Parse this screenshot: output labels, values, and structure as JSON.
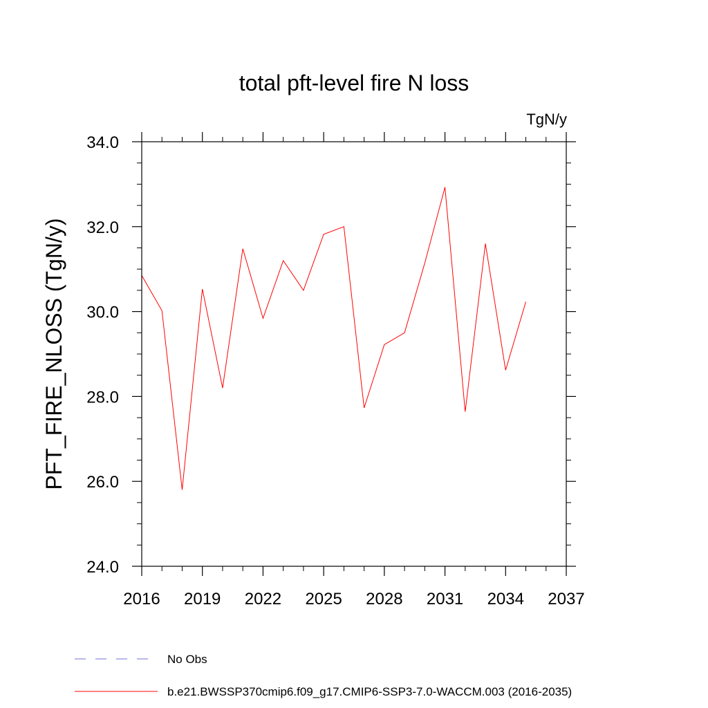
{
  "chart_data": {
    "type": "line",
    "title": "total pft-level fire N loss",
    "units_label": "TgN/y",
    "ylabel": "PFT_FIRE_NLOSS  (TgN/y)",
    "xlabel": "",
    "xlim": [
      2016,
      2037
    ],
    "ylim": [
      24.0,
      34.0
    ],
    "x_ticks": [
      2016,
      2019,
      2022,
      2025,
      2028,
      2031,
      2034,
      2037
    ],
    "x_tick_labels": [
      "2016",
      "2019",
      "2022",
      "2025",
      "2028",
      "2031",
      "2034",
      "2037"
    ],
    "y_ticks": [
      24,
      26,
      28,
      30,
      32,
      34
    ],
    "y_tick_labels": [
      "24.0",
      "26.0",
      "28.0",
      "30.0",
      "32.0",
      "34.0"
    ],
    "grid": false,
    "legend_position": "bottom",
    "series": [
      {
        "name": "b.e21.BWSSP370cmip6.f09_g17.CMIP6-SSP3-7.0-WACCM.003 (2016-2035)",
        "color": "#ff0000",
        "style": "solid",
        "x": [
          2016,
          2017,
          2018,
          2019,
          2020,
          2021,
          2022,
          2023,
          2024,
          2025,
          2026,
          2027,
          2028,
          2029,
          2030,
          2031,
          2032,
          2033,
          2034,
          2035
        ],
        "values": [
          30.85,
          30.02,
          25.8,
          30.53,
          28.2,
          31.48,
          29.84,
          31.2,
          30.5,
          31.82,
          32.0,
          27.73,
          29.22,
          29.5,
          31.14,
          32.93,
          27.64,
          31.6,
          28.62,
          30.23
        ]
      }
    ],
    "legend": [
      {
        "label": "No Obs",
        "color": "#6f6fd6",
        "style": "dashed"
      },
      {
        "label": "b.e21.BWSSP370cmip6.f09_g17.CMIP6-SSP3-7.0-WACCM.003 (2016-2035)",
        "color": "#ff0000",
        "style": "solid"
      }
    ]
  }
}
